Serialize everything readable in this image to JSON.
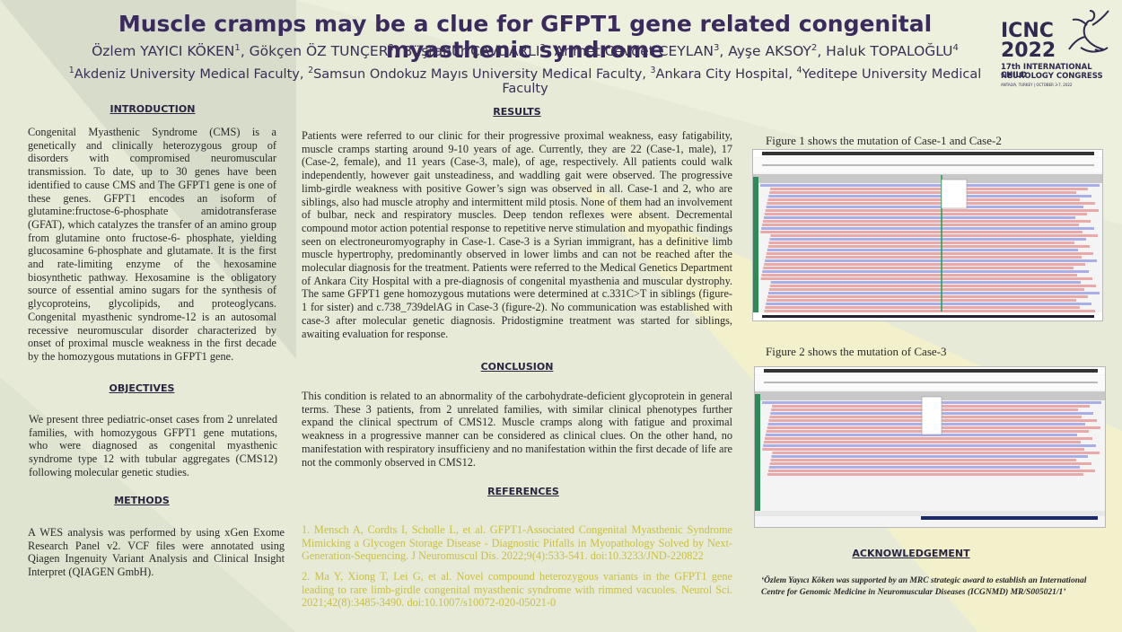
{
  "title": "Muscle cramps may be a clue for GFPT1 gene related  congenital myasthenic syndrome",
  "authors": [
    {
      "name": "Özlem YAYICI KÖKEN",
      "sup": "1"
    },
    {
      "name": "Gökçen ÖZ TUNÇER",
      "sup": "2"
    },
    {
      "name": "Büşranur ÇAVDARLI",
      "sup": "3"
    },
    {
      "name": "Ahmet Cevdet CEYLAN",
      "sup": "3"
    },
    {
      "name": "Ayşe AKSOY",
      "sup": "2"
    },
    {
      "name": "Haluk TOPALOĞLU",
      "sup": "4"
    }
  ],
  "affiliations": [
    {
      "sup": "1",
      "name": "Akdeniz University Medical Faculty"
    },
    {
      "sup": "2",
      "name": "Samsun Ondokuz Mayıs University Medical Faculty"
    },
    {
      "sup": "3",
      "name": "Ankara City Hospital"
    },
    {
      "sup": "4",
      "name": "Yeditepe University Medical Faculty"
    }
  ],
  "logo": {
    "line1": "ICNC",
    "line2": "2022",
    "line3": "17th INTERNATIONAL CHILD",
    "line4": "NEUROLOGY CONGRESS",
    "line5": "ANTALYA, TURKEY | OCTOBER 3-7, 2022"
  },
  "introduction": {
    "heading": "INTRODUCTION",
    "text": "Congenital Myasthenic Syndrome (CMS) is a genetically and clinically heterozygous group of disorders with compromised neuromuscular transmission. To date, up to 30 genes have been identified to cause CMS and The GFPT1 gene is one of these genes. GFPT1 encodes an isoform of glutamine:fructose-6-phosphate amidotransferase (GFAT), which catalyzes the transfer of an amino group from glutamine onto fructose-6- phosphate, yielding glucosamine 6-phosphate and glutamate. It is the first and rate-limiting enzyme of the hexosamine biosynthetic pathway. Hexosamine is the obligatory source of essential amino sugars for the synthesis of glycoproteins, glycolipids, and proteoglycans. Congenital myasthenic syndrome-12 is an autosomal recessive neuromuscular disorder characterized by onset of proximal muscle weakness in the first decade by the homozygous mutations in GFPT1 gene."
  },
  "objectives": {
    "heading": "OBJECTIVES",
    "text": "We present three pediatric-onset cases from 2 unrelated families, with homozygous GFPT1 gene mutations, who were diagnosed as congenital myasthenic syndrome type 12 with tubular aggregates (CMS12) following molecular genetic studies."
  },
  "methods": {
    "heading": "METHODS",
    "text": "A WES analysis was performed by using xGen Exome Research Panel v2. VCF files were annotated using Qiagen Ingenuity Variant Analysis and Clinical Insight Interpret (QIAGEN GmbH)."
  },
  "results": {
    "heading": "RESULTS",
    "text": "Patients were referred to our clinic for their progressive proximal weakness, easy fatigability, muscle cramps starting around 9-10 years of age. Currently, they are 22 (Case-1, male), 17 (Case-2, female), and 11 years (Case-3, male), of age, respectively. All patients could walk independently, however gait unsteadiness, and waddling gait were observed. The progressive limb-girdle weakness with positive Gower’s sign was observed in all. Case-1 and 2, who are siblings, also had muscle atrophy and intermittent mild ptosis. None of them had an involvement of bulbar, neck and respiratory muscles. Deep tendon reflexes were absent. Decremental compound motor action potential response to repetitive nerve stimulation and myopathic findings seen on electroneuromyography in Case-1. Case-3 is a Syrian immigrant, has a definitive limb muscle hypertrophy, predominantly observed in lower limbs and can not be reached after the molecular diagnosis for the treatment. Patients were referred to the Medical Genetics Department of Ankara City Hospital with a pre-diagnosis of congenital myasthenia and muscular dystrophy. The same GFPT1 gene homozygous mutations were determined at c.331C>T in siblings (figure-1 for sister) and c.738_739delAG in Case-3 (figure-2). No communication was established with case-3 after molecular genetic diagnosis. Pridostigmine treatment was started for siblings, awaiting evaluation for response."
  },
  "conclusion": {
    "heading": "CONCLUSION",
    "text": "This condition is related to an abnormality of the carbohydrate-deficient glycoprotein in general terms. These 3 patients, from 2 unrelated families, with similar clinical phenotypes further expand the clinical spectrum of CMS12. Muscle cramps along with fatigue and proximal weakness in a progressive manner can be considered as clinical clues. On the other hand, no manifestation with respiratory insufficieny and no manifestation within the first decade of life are not the commonly observed in CMS12."
  },
  "references": {
    "heading": "REFERENCES",
    "items": [
      "1. Mensch A, Cordts I, Scholle L, et al. GFPT1-Associated Congenital Myasthenic Syndrome Mimicking a Glycogen Storage Disease - Diagnostic Pitfalls in Myopathology Solved by Next-Generation-Sequencing. J Neuromuscul Dis. 2022;9(4):533-541. doi:10.3233/JND-220822",
      "2. Ma Y, Xiong T, Lei G, et al. Novel compound heterozygous variants in the GFPT1 gene leading to rare limb-girdle congenital myasthenic syndrome with rimmed vacuoles. Neurol Sci. 2021;42(8):3485-3490. doi:10.1007/s10072-020-05021-0"
    ]
  },
  "figure1": {
    "caption": "Figure 1 shows the mutation of Case-1 and Case-2"
  },
  "figure2": {
    "caption": "Figure 2 shows the mutation of Case-3"
  },
  "acknowledgement": {
    "heading": "ACKNOWLEDGEMENT",
    "text": "‘Özlem Yayıcı Köken was supported by an MRC strategic award to establish an International Centre for Genomic Medicine in Neuromuscular Diseases (ICGNMD) MR/S005021/1’"
  },
  "colors": {
    "title": "#3b2a5e",
    "reference": "#c9c040",
    "background": "#e9ecd6"
  }
}
